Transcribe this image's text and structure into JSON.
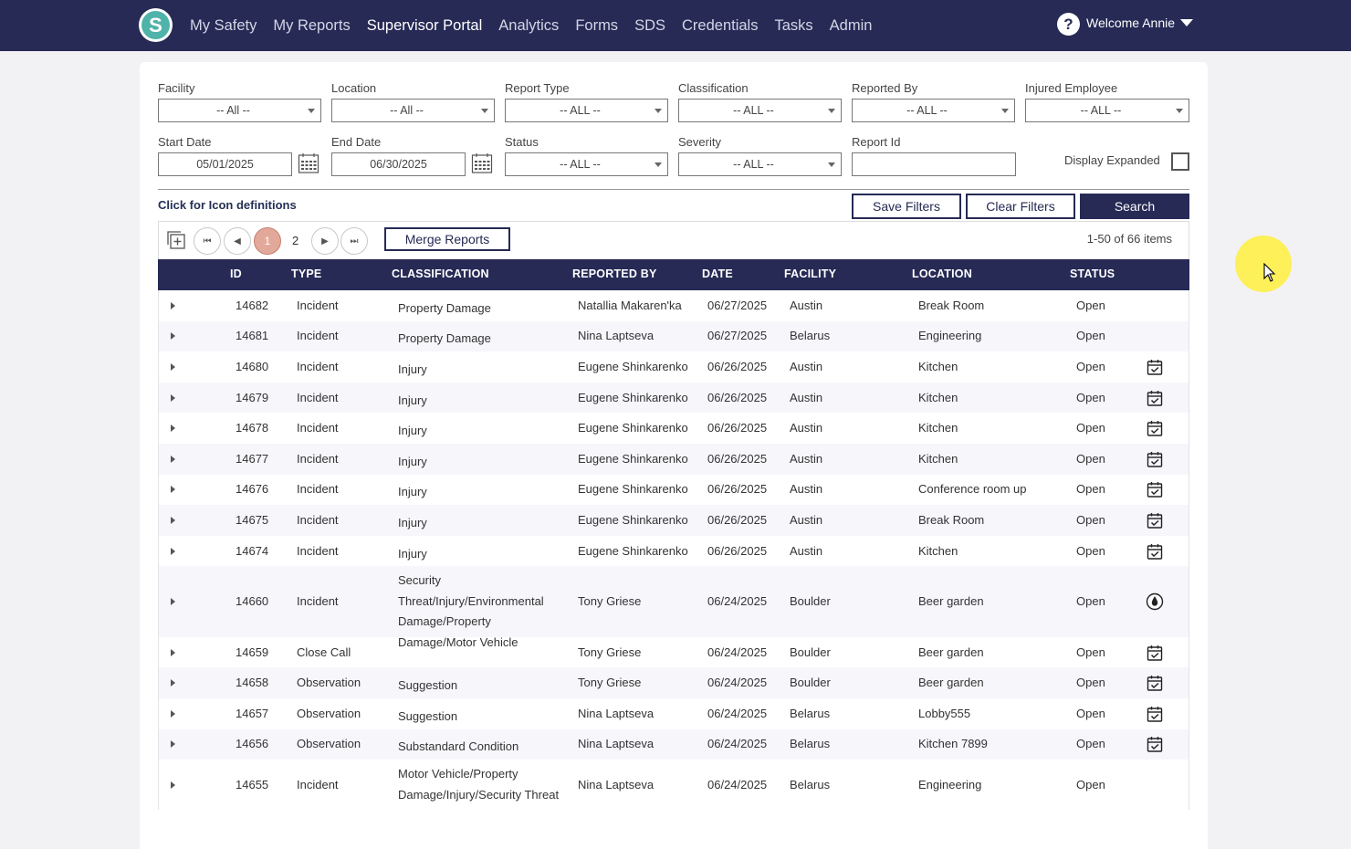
{
  "nav": {
    "logo_letter": "S",
    "items": [
      {
        "label": "My Safety",
        "active": false
      },
      {
        "label": "My Reports",
        "active": false
      },
      {
        "label": "Supervisor Portal",
        "active": true
      },
      {
        "label": "Analytics",
        "active": false
      },
      {
        "label": "Forms",
        "active": false
      },
      {
        "label": "SDS",
        "active": false
      },
      {
        "label": "Credentials",
        "active": false
      },
      {
        "label": "Tasks",
        "active": false
      },
      {
        "label": "Admin",
        "active": false
      }
    ],
    "help_glyph": "?",
    "welcome": "Welcome Annie"
  },
  "filters": {
    "facility": {
      "label": "Facility",
      "value": "-- All --"
    },
    "location": {
      "label": "Location",
      "value": "-- All --"
    },
    "report_type": {
      "label": "Report Type",
      "value": "-- ALL --"
    },
    "classification": {
      "label": "Classification",
      "value": "-- ALL --"
    },
    "reported_by": {
      "label": "Reported By",
      "value": "-- ALL --"
    },
    "injured_employee": {
      "label": "Injured Employee",
      "value": "-- ALL --"
    },
    "start_date": {
      "label": "Start Date",
      "value": "05/01/2025"
    },
    "end_date": {
      "label": "End Date",
      "value": "06/30/2025"
    },
    "status": {
      "label": "Status",
      "value": "-- ALL --"
    },
    "severity": {
      "label": "Severity",
      "value": "-- ALL --"
    },
    "report_id": {
      "label": "Report Id",
      "value": ""
    },
    "display_expanded": {
      "label": "Display Expanded",
      "checked": false
    }
  },
  "actions": {
    "icon_definitions": "Click for Icon definitions",
    "save_filters": "Save Filters",
    "clear_filters": "Clear Filters",
    "search": "Search"
  },
  "pager": {
    "current_page": "1",
    "next_page": "2",
    "merge_label": "Merge Reports",
    "items_info": "1-50 of 66 items"
  },
  "table": {
    "headers": {
      "id": "ID",
      "type": "TYPE",
      "classification": "CLASSIFICATION",
      "reported_by": "REPORTED BY",
      "date": "DATE",
      "facility": "FACILITY",
      "location": "LOCATION",
      "status": "STATUS"
    },
    "rows": [
      {
        "id": "14682",
        "type": "Incident",
        "classification": "Property Damage",
        "reported_by": "Natallia Makaren'ka",
        "date": "06/27/2025",
        "facility": "Austin",
        "location": "Break Room",
        "status": "Open",
        "icon": ""
      },
      {
        "id": "14681",
        "type": "Incident",
        "classification": "Property Damage",
        "reported_by": "Nina Laptseva",
        "date": "06/27/2025",
        "facility": "Belarus",
        "location": "Engineering",
        "status": "Open",
        "icon": ""
      },
      {
        "id": "14680",
        "type": "Incident",
        "classification": "Injury",
        "reported_by": "Eugene Shinkarenko",
        "date": "06/26/2025",
        "facility": "Austin",
        "location": "Kitchen",
        "status": "Open",
        "icon": "calendar-check-icon"
      },
      {
        "id": "14679",
        "type": "Incident",
        "classification": "Injury",
        "reported_by": "Eugene Shinkarenko",
        "date": "06/26/2025",
        "facility": "Austin",
        "location": "Kitchen",
        "status": "Open",
        "icon": "calendar-check-icon"
      },
      {
        "id": "14678",
        "type": "Incident",
        "classification": "Injury",
        "reported_by": "Eugene Shinkarenko",
        "date": "06/26/2025",
        "facility": "Austin",
        "location": "Kitchen",
        "status": "Open",
        "icon": "calendar-check-icon"
      },
      {
        "id": "14677",
        "type": "Incident",
        "classification": "Injury",
        "reported_by": "Eugene Shinkarenko",
        "date": "06/26/2025",
        "facility": "Austin",
        "location": "Kitchen",
        "status": "Open",
        "icon": "calendar-check-icon"
      },
      {
        "id": "14676",
        "type": "Incident",
        "classification": "Injury",
        "reported_by": "Eugene Shinkarenko",
        "date": "06/26/2025",
        "facility": "Austin",
        "location": "Conference room up",
        "status": "Open",
        "icon": "calendar-check-icon"
      },
      {
        "id": "14675",
        "type": "Incident",
        "classification": "Injury",
        "reported_by": "Eugene Shinkarenko",
        "date": "06/26/2025",
        "facility": "Austin",
        "location": "Break Room",
        "status": "Open",
        "icon": "calendar-check-icon"
      },
      {
        "id": "14674",
        "type": "Incident",
        "classification": "Injury",
        "reported_by": "Eugene Shinkarenko",
        "date": "06/26/2025",
        "facility": "Austin",
        "location": "Kitchen",
        "status": "Open",
        "icon": "calendar-check-icon"
      },
      {
        "id": "14660",
        "type": "Incident",
        "classification": "Security Threat/Injury/Environmental Damage/Property Damage/Motor Vehicle",
        "reported_by": "Tony Griese",
        "date": "06/24/2025",
        "facility": "Boulder",
        "location": "Beer garden",
        "status": "Open",
        "icon": "water-drop-icon"
      },
      {
        "id": "14659",
        "type": "Close Call",
        "classification": "",
        "reported_by": "Tony Griese",
        "date": "06/24/2025",
        "facility": "Boulder",
        "location": "Beer garden",
        "status": "Open",
        "icon": "calendar-check-icon"
      },
      {
        "id": "14658",
        "type": "Observation",
        "classification": "Suggestion",
        "reported_by": "Tony Griese",
        "date": "06/24/2025",
        "facility": "Boulder",
        "location": "Beer garden",
        "status": "Open",
        "icon": "calendar-check-icon"
      },
      {
        "id": "14657",
        "type": "Observation",
        "classification": "Suggestion",
        "reported_by": "Nina Laptseva",
        "date": "06/24/2025",
        "facility": "Belarus",
        "location": "Lobby555",
        "status": "Open",
        "icon": "calendar-check-icon"
      },
      {
        "id": "14656",
        "type": "Observation",
        "classification": "Substandard Condition",
        "reported_by": "Nina Laptseva",
        "date": "06/24/2025",
        "facility": "Belarus",
        "location": "Kitchen 7899",
        "status": "Open",
        "icon": "calendar-check-icon"
      },
      {
        "id": "14655",
        "type": "Incident",
        "classification": "Motor Vehicle/Property Damage/Injury/Security Threat",
        "reported_by": "Nina Laptseva",
        "date": "06/24/2025",
        "facility": "Belarus",
        "location": "Engineering",
        "status": "Open",
        "icon": ""
      }
    ]
  }
}
